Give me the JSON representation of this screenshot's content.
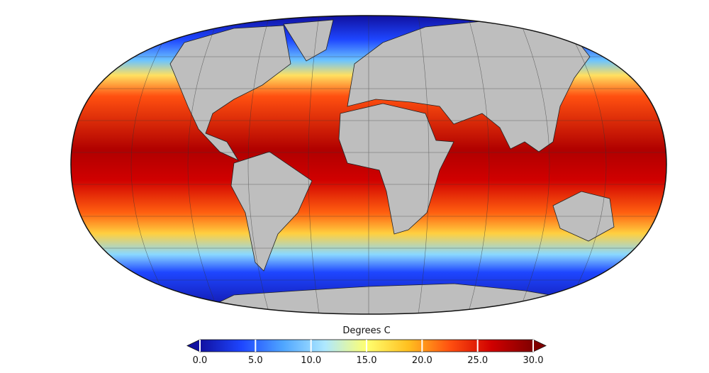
{
  "colorbar": {
    "label": "Degrees C",
    "range": [
      0,
      30
    ],
    "ticks": [
      {
        "value": 0,
        "label": "0.0"
      },
      {
        "value": 5,
        "label": "5.0"
      },
      {
        "value": 10,
        "label": "10.0"
      },
      {
        "value": 15,
        "label": "15.0"
      },
      {
        "value": 20,
        "label": "20.0"
      },
      {
        "value": 25,
        "label": "25.0"
      },
      {
        "value": 30,
        "label": "30.0"
      }
    ],
    "colors": [
      "#1010a0",
      "#1e46ff",
      "#4fa6ff",
      "#aee8ff",
      "#ffff70",
      "#ffc020",
      "#ff5010",
      "#d00000",
      "#800000"
    ],
    "under_color": "#1010a0",
    "over_color": "#800000"
  }
}
